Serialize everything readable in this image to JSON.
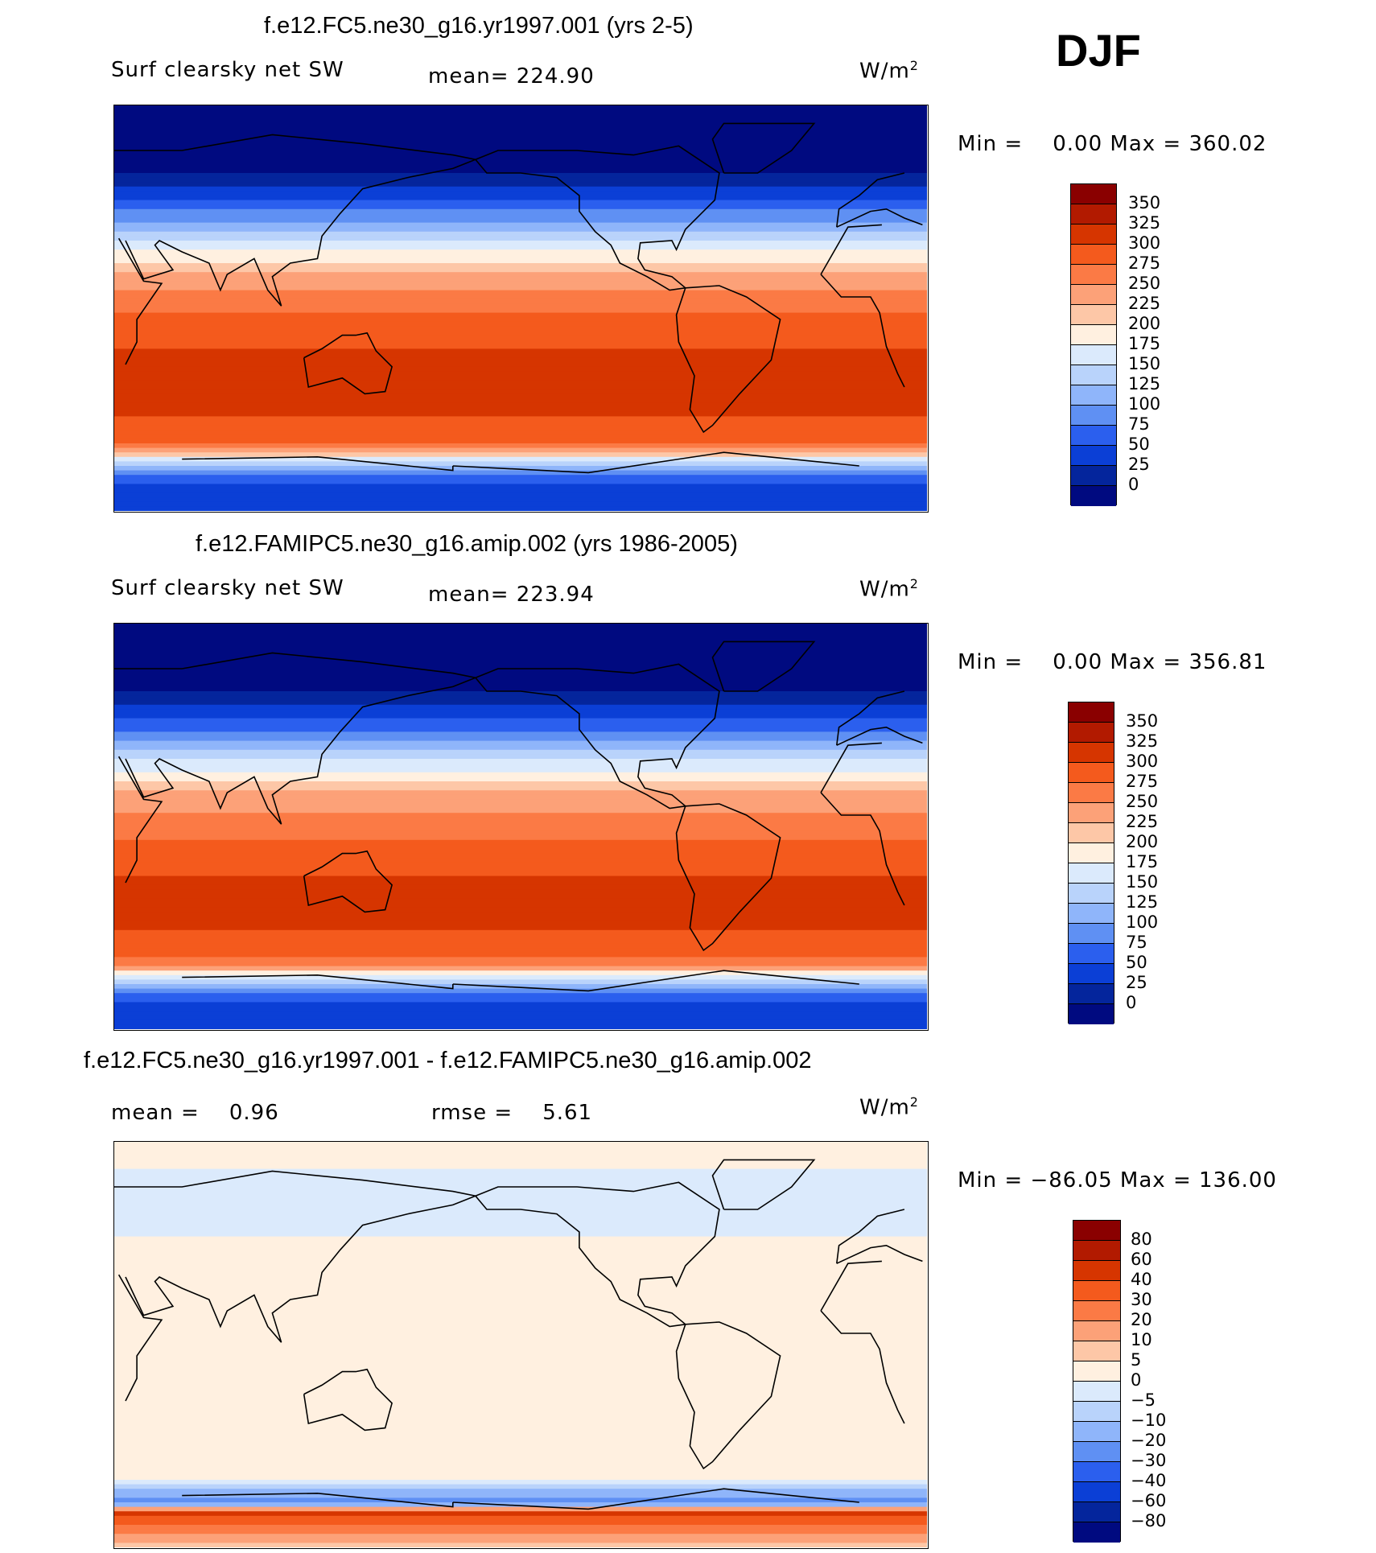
{
  "season": "DJF",
  "panels": [
    {
      "title": "f.e12.FC5.ne30_g16.yr1997.001 (yrs 2-5)",
      "variable": "Surf clearsky net SW",
      "stat": "mean= 224.90",
      "units_base": "W/m",
      "units_exp": "2",
      "minmax": "Min =    0.00 Max = 360.02",
      "kind": "abs"
    },
    {
      "title": "f.e12.FAMIPC5.ne30_g16.amip.002 (yrs 1986-2005)",
      "variable": "Surf clearsky net SW",
      "stat": "mean= 223.94",
      "units_base": "W/m",
      "units_exp": "2",
      "minmax": "Min =    0.00 Max = 356.81",
      "kind": "abs"
    },
    {
      "title": "f.e12.FC5.ne30_g16.yr1997.001 - f.e12.FAMIPC5.ne30_g16.amip.002",
      "variable": "mean =    0.96",
      "stat": "rmse =    5.61",
      "units_base": "W/m",
      "units_exp": "2",
      "minmax": "Min = −86.05 Max = 136.00",
      "kind": "diff"
    }
  ],
  "chart_data": [
    {
      "type": "heatmap",
      "title": "f.e12.FC5.ne30_g16.yr1997.001 (yrs 2-5)",
      "variable": "Surf clearsky net SW",
      "units": "W/m2",
      "mean": 224.9,
      "min": 0.0,
      "max": 360.02,
      "colorbar_levels": [
        "350",
        "325",
        "300",
        "275",
        "250",
        "225",
        "200",
        "175",
        "150",
        "125",
        "100",
        "75",
        "50",
        "25",
        "0"
      ],
      "colorbar_colors": [
        "#8a0000",
        "#b21a00",
        "#d63500",
        "#f45a1d",
        "#fb7a45",
        "#fca178",
        "#fdc7a7",
        "#fff0e0",
        "#dbeafc",
        "#b9d3fb",
        "#8fb5fa",
        "#5f90f3",
        "#2b5fee",
        "#0b3fd6",
        "#04259c",
        "#000a80"
      ],
      "zonal_profile": {
        "lat": [
          90,
          60,
          45,
          30,
          15,
          0,
          -15,
          -30,
          -45,
          -60,
          -75,
          -90
        ],
        "value": [
          10,
          25,
          90,
          175,
          255,
          295,
          320,
          340,
          330,
          300,
          80,
          60
        ]
      }
    },
    {
      "type": "heatmap",
      "title": "f.e12.FAMIPC5.ne30_g16.amip.002 (yrs 1986-2005)",
      "variable": "Surf clearsky net SW",
      "units": "W/m2",
      "mean": 223.94,
      "min": 0.0,
      "max": 356.81,
      "colorbar_levels": [
        "350",
        "325",
        "300",
        "275",
        "250",
        "225",
        "200",
        "175",
        "150",
        "125",
        "100",
        "75",
        "50",
        "25",
        "0"
      ],
      "colorbar_colors": [
        "#8a0000",
        "#b21a00",
        "#d63500",
        "#f45a1d",
        "#fb7a45",
        "#fca178",
        "#fdc7a7",
        "#fff0e0",
        "#dbeafc",
        "#b9d3fb",
        "#8fb5fa",
        "#5f90f3",
        "#2b5fee",
        "#0b3fd6",
        "#04259c",
        "#000a80"
      ],
      "zonal_profile": {
        "lat": [
          90,
          60,
          45,
          30,
          15,
          0,
          -15,
          -30,
          -45,
          -60,
          -75,
          -90
        ],
        "value": [
          10,
          25,
          85,
          170,
          250,
          290,
          315,
          335,
          325,
          295,
          80,
          60
        ]
      }
    },
    {
      "type": "heatmap",
      "title": "f.e12.FC5.ne30_g16.yr1997.001 - f.e12.FAMIPC5.ne30_g16.amip.002",
      "units": "W/m2",
      "mean": 0.96,
      "rmse": 5.61,
      "min": -86.05,
      "max": 136.0,
      "colorbar_levels": [
        "80",
        "60",
        "40",
        "30",
        "20",
        "10",
        "5",
        "0",
        "−5",
        "−10",
        "−20",
        "−30",
        "−40",
        "−60",
        "−80"
      ],
      "colorbar_colors": [
        "#8a0000",
        "#b21a00",
        "#d63500",
        "#f45a1d",
        "#fb7a45",
        "#fca178",
        "#fdc7a7",
        "#fff0e0",
        "#dbeafc",
        "#b9d3fb",
        "#8fb5fa",
        "#5f90f3",
        "#2b5fee",
        "#0b3fd6",
        "#04259c",
        "#000a80"
      ],
      "zonal_profile": {
        "lat": [
          90,
          60,
          45,
          30,
          15,
          0,
          -15,
          -30,
          -45,
          -60,
          -70,
          -75,
          -90
        ],
        "value": [
          2,
          -3,
          1,
          3,
          2,
          1,
          2,
          2,
          3,
          2,
          -25,
          40,
          5
        ]
      }
    }
  ]
}
